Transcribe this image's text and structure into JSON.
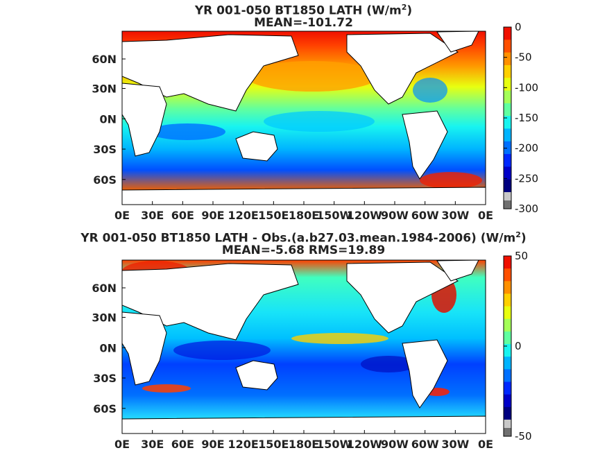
{
  "colors": {
    "land": "#ffffff",
    "missing": "#7f7f7f",
    "scale": [
      "#00007f",
      "#0000c8",
      "#0028ff",
      "#0070ff",
      "#00b4ff",
      "#18f4f0",
      "#60ffa0",
      "#a4ff58",
      "#e8ff10",
      "#ffd000",
      "#ff9000",
      "#ff5000",
      "#f01000"
    ]
  },
  "chart_data": [
    {
      "type": "heatmap",
      "title_line1": "YR 001-050 BT1850  LATH (W/m",
      "title_sup": "2",
      "title_close": ")",
      "title_line2": "MEAN=-101.72",
      "x_ticks": [
        "0E",
        "30E",
        "60E",
        "90E",
        "120E",
        "150E",
        "180E",
        "150W",
        "120W",
        "90W",
        "60W",
        "30W",
        "0E"
      ],
      "y_ticks": [
        "60N",
        "30N",
        "0N",
        "30S",
        "60S"
      ],
      "colorbar": {
        "min": -300,
        "max": 0,
        "ticks": [
          "0",
          "-50",
          "-100",
          "-150",
          "-200",
          "-250",
          "-300"
        ]
      }
    },
    {
      "type": "heatmap",
      "title_line1": "YR 001-050 BT1850 LATH - Obs.(a.b27.03.mean.1984-2006) (W/m",
      "title_sup": "2",
      "title_close": ")",
      "title_line2": "MEAN=-5.68 RMS=19.89",
      "x_ticks": [
        "0E",
        "30E",
        "60E",
        "90E",
        "120E",
        "150E",
        "180E",
        "150W",
        "120W",
        "90W",
        "60W",
        "30W",
        "0E"
      ],
      "y_ticks": [
        "60N",
        "30N",
        "0N",
        "30S",
        "60S"
      ],
      "colorbar": {
        "min": -50,
        "max": 50,
        "ticks": [
          "50",
          "0",
          "-50"
        ]
      }
    }
  ]
}
